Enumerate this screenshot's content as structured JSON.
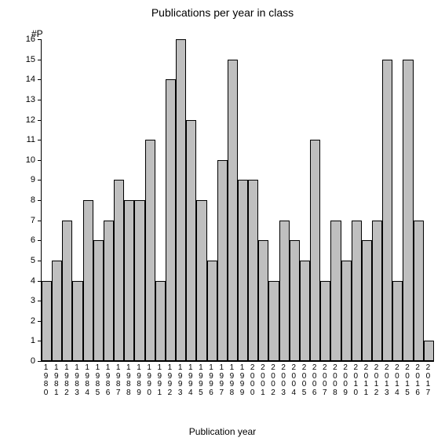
{
  "chart": {
    "type": "bar",
    "title": "Publications per year in class",
    "title_fontsize": 14,
    "y_axis_title": "#P",
    "x_axis_title": "Publication year",
    "label_fontsize": 12,
    "tick_fontsize": 11,
    "x_tick_fontsize": 10,
    "background_color": "#ffffff",
    "bar_fill": "#bfbfbf",
    "bar_border": "#000000",
    "axis_color": "#000000",
    "ylim": [
      0,
      16
    ],
    "ytick_step": 1,
    "categories": [
      "1980",
      "1981",
      "1982",
      "1983",
      "1984",
      "1985",
      "1986",
      "1987",
      "1988",
      "1989",
      "1990",
      "1991",
      "1992",
      "1993",
      "1994",
      "1995",
      "1996",
      "1997",
      "1998",
      "1999",
      "2000",
      "2001",
      "2002",
      "2003",
      "2004",
      "2005",
      "2006",
      "2007",
      "2008",
      "2009",
      "2010",
      "2011",
      "2012",
      "2013",
      "2014",
      "2015",
      "2016",
      "2017"
    ],
    "values": [
      4,
      5,
      7,
      4,
      8,
      6,
      7,
      9,
      8,
      8,
      11,
      4,
      14,
      16,
      12,
      8,
      5,
      10,
      15,
      9,
      9,
      6,
      4,
      7,
      6,
      5,
      11,
      4,
      7,
      5,
      7,
      6,
      7,
      15,
      4,
      15,
      7,
      1
    ]
  }
}
